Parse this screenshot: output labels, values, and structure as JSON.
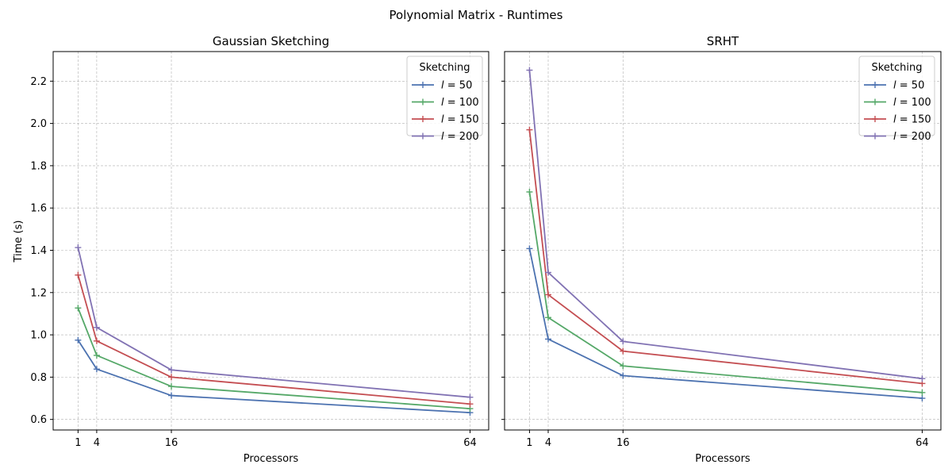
{
  "figure": {
    "title": "Polynomial Matrix - Runtimes",
    "ylabel": "Time (s)"
  },
  "chart_data": [
    {
      "type": "line",
      "title": "Gaussian Sketching",
      "xlabel": "Processors",
      "ylabel": "Time (s)",
      "x": [
        1,
        4,
        16,
        64
      ],
      "x_ticks": [
        "1",
        "4",
        "16",
        "64"
      ],
      "xlim": [
        -3,
        67
      ],
      "ylim": [
        0.55,
        2.34
      ],
      "y_ticks": [
        "0.6",
        "0.8",
        "1.0",
        "1.2",
        "1.4",
        "1.6",
        "1.8",
        "2.0",
        "2.2"
      ],
      "grid": true,
      "legend": {
        "title": "Sketching",
        "placement": "top-right"
      },
      "series": [
        {
          "name": "l = 50",
          "label_l": "l",
          "label_n": "50",
          "color": "#4c72b0",
          "values": [
            0.975,
            0.838,
            0.713,
            0.632
          ]
        },
        {
          "name": "l = 100",
          "label_l": "l",
          "label_n": "100",
          "color": "#55a868",
          "values": [
            1.127,
            0.903,
            0.756,
            0.651
          ]
        },
        {
          "name": "l = 150",
          "label_l": "l",
          "label_n": "150",
          "color": "#c44e52",
          "values": [
            1.283,
            0.971,
            0.8,
            0.673
          ]
        },
        {
          "name": "l = 200",
          "label_l": "l",
          "label_n": "200",
          "color": "#8172b3",
          "values": [
            1.413,
            1.035,
            0.834,
            0.705
          ]
        }
      ]
    },
    {
      "type": "line",
      "title": "SRHT",
      "xlabel": "Processors",
      "ylabel": "",
      "x": [
        1,
        4,
        16,
        64
      ],
      "x_ticks": [
        "1",
        "4",
        "16",
        "64"
      ],
      "xlim": [
        -3,
        67
      ],
      "ylim": [
        0.55,
        2.34
      ],
      "y_ticks": [
        "0.6",
        "0.8",
        "1.0",
        "1.2",
        "1.4",
        "1.6",
        "1.8",
        "2.0",
        "2.2"
      ],
      "grid": true,
      "legend": {
        "title": "Sketching",
        "placement": "top-right"
      },
      "series": [
        {
          "name": "l = 50",
          "label_l": "l",
          "label_n": "50",
          "color": "#4c72b0",
          "values": [
            1.408,
            0.98,
            0.807,
            0.7
          ]
        },
        {
          "name": "l = 100",
          "label_l": "l",
          "label_n": "100",
          "color": "#55a868",
          "values": [
            1.676,
            1.082,
            0.853,
            0.727
          ]
        },
        {
          "name": "l = 150",
          "label_l": "l",
          "label_n": "150",
          "color": "#c44e52",
          "values": [
            1.97,
            1.19,
            0.923,
            0.77
          ]
        },
        {
          "name": "l = 200",
          "label_l": "l",
          "label_n": "200",
          "color": "#8172b3",
          "values": [
            2.252,
            1.295,
            0.969,
            0.793
          ]
        }
      ]
    }
  ]
}
